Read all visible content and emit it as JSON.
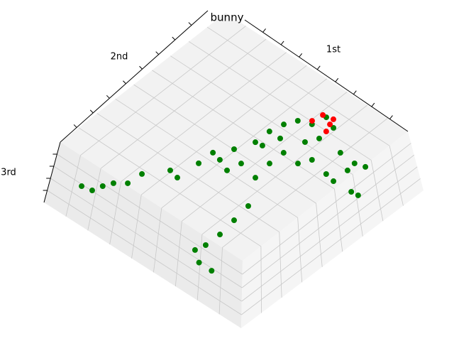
{
  "chart_data": {
    "type": "scatter3d",
    "title": "bunny",
    "xlabel": "1st",
    "ylabel": "2nd",
    "zlabel": "3rd",
    "xlim": [
      0,
      1
    ],
    "ylim": [
      0,
      1
    ],
    "zlim": [
      0,
      1
    ],
    "grid": true,
    "series": [
      {
        "color": "#008000",
        "x": [
          0.117,
          0.165,
          0.201,
          0.251,
          0.322,
          0.38,
          0.382,
          0.432,
          0.469,
          0.47,
          0.486,
          0.514,
          0.57,
          0.586,
          0.648,
          0.646,
          0.617,
          0.594,
          0.593,
          0.605,
          0.692,
          0.704,
          0.716,
          0.714,
          0.701,
          0.761,
          0.83,
          0.508,
          0.492,
          0.764,
          0.847,
          0.893,
          0.853,
          0.803,
          0.852,
          0.946,
          0.98,
          0.678,
          0.706,
          0.529,
          0.503,
          0.43,
          0.371,
          0.244,
          0.18
        ],
        "y": [
          0.0,
          0.011,
          0.1,
          0.217,
          0.31,
          0.418,
          0.502,
          0.575,
          0.663,
          0.747,
          0.816,
          0.87,
          0.894,
          0.963,
          0.938,
          0.854,
          0.8,
          0.696,
          0.612,
          0.513,
          0.374,
          0.275,
          0.176,
          0.092,
          0.042,
          0.0,
          0.0,
          0.534,
          0.466,
          0.852,
          0.846,
          0.861,
          0.797,
          0.723,
          0.713,
          0.717,
          0.721,
          0.69,
          0.744,
          0.747,
          0.668,
          0.491,
          0.299,
          0.139,
          0.058
        ],
        "z": [
          0.5,
          0.5,
          0.5,
          0.5,
          0.5,
          0.5,
          0.5,
          0.5,
          0.5,
          0.5,
          0.5,
          0.5,
          0.5,
          0.5,
          0.5,
          0.5,
          0.5,
          0.5,
          0.5,
          0.5,
          0.5,
          0.5,
          0.5,
          0.5,
          0.5,
          0.5,
          0.5,
          0.5,
          0.5,
          0.5,
          0.5,
          0.5,
          0.5,
          0.5,
          0.5,
          0.5,
          0.5,
          0.5,
          0.5,
          0.5,
          0.5,
          0.5,
          0.5,
          0.5,
          0.5
        ]
      },
      {
        "color": "#ff0000",
        "x": [
          0.557,
          0.567,
          0.624,
          0.64,
          0.615
        ],
        "y": [
          0.909,
          0.963,
          0.943,
          0.903,
          0.974
        ],
        "z": [
          0.5,
          0.5,
          0.5,
          0.5,
          0.5
        ]
      }
    ]
  }
}
